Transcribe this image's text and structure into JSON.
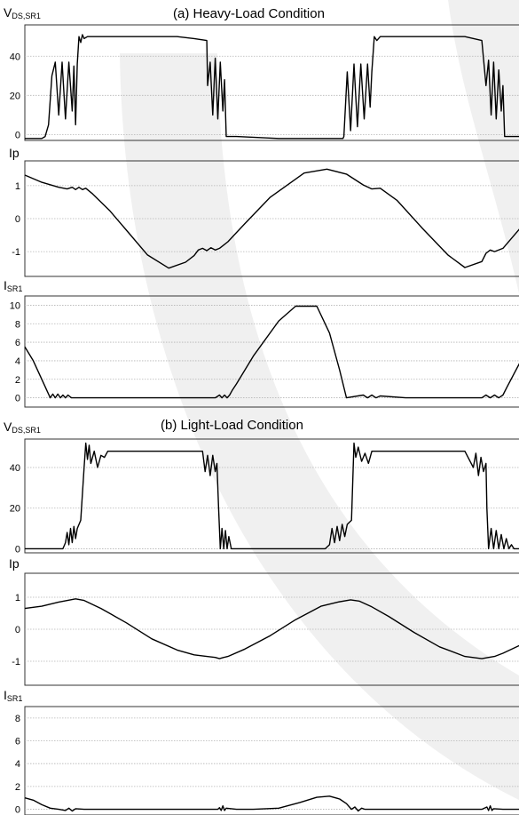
{
  "colors": {
    "trace": "#000000",
    "grid": "#b4b4b4",
    "frame": "#333333",
    "watermark": "#f0f0f0"
  },
  "sections": {
    "a_title": "(a) Heavy-Load Condition",
    "b_title": "(b) Light-Load Condition"
  },
  "chart_data": [
    {
      "type": "line",
      "name": "a-vds",
      "label_main": "V",
      "label_sub": "DS,SR1",
      "ylim": [
        -3,
        56
      ],
      "ytick_values": [
        0,
        20,
        40
      ],
      "yticks": [
        "0",
        "20",
        "40"
      ],
      "grid": true,
      "x": [
        0,
        20,
        24,
        28,
        32,
        36,
        40,
        44,
        48,
        52,
        56,
        58,
        60,
        62,
        64,
        66,
        68,
        70,
        74,
        80,
        100,
        140,
        180,
        200,
        215,
        216,
        219,
        222,
        225,
        228,
        231,
        234,
        236,
        238,
        250,
        300,
        340,
        376,
        377,
        381,
        385,
        389,
        393,
        397,
        401,
        405,
        408,
        410,
        413,
        416,
        420,
        440,
        480,
        520,
        540,
        545,
        548,
        551,
        554,
        557,
        560,
        563,
        565,
        567,
        575,
        585
      ],
      "y": [
        -2,
        -2,
        -1,
        5,
        30,
        37,
        10,
        37,
        8,
        37,
        12,
        35,
        5,
        36,
        50,
        47,
        51,
        49,
        50,
        50,
        50,
        50,
        50,
        49,
        48,
        25,
        37,
        10,
        39,
        8,
        37,
        12,
        28,
        -1,
        -1,
        -2,
        -2,
        -2,
        -1,
        32,
        2,
        36,
        4,
        36,
        8,
        36,
        14,
        32,
        50,
        48,
        50,
        50,
        50,
        50,
        48,
        25,
        38,
        10,
        37,
        8,
        33,
        12,
        25,
        -1,
        -1,
        -1
      ]
    },
    {
      "type": "line",
      "name": "a-ip",
      "label_main": "Ip",
      "label_sub": "",
      "ylim": [
        -1.75,
        1.75
      ],
      "ytick_values": [
        -1,
        0,
        1
      ],
      "yticks": [
        "-1",
        "0",
        "1"
      ],
      "grid": true,
      "x": [
        0,
        20,
        40,
        50,
        56,
        60,
        64,
        68,
        72,
        80,
        100,
        120,
        145,
        170,
        190,
        200,
        205,
        210,
        215,
        220,
        225,
        230,
        240,
        260,
        290,
        330,
        357,
        380,
        400,
        410,
        420,
        440,
        470,
        500,
        520,
        540,
        545,
        550,
        555,
        565,
        585
      ],
      "y": [
        1.32,
        1.1,
        0.95,
        0.9,
        0.95,
        0.88,
        0.95,
        0.88,
        0.92,
        0.75,
        0.25,
        -0.35,
        -1.1,
        -1.5,
        -1.32,
        -1.12,
        -0.95,
        -0.9,
        -0.97,
        -0.88,
        -0.95,
        -0.9,
        -0.7,
        -0.15,
        0.65,
        1.38,
        1.5,
        1.35,
        1.02,
        0.9,
        0.92,
        0.55,
        -0.3,
        -1.1,
        -1.48,
        -1.3,
        -1.05,
        -0.95,
        -1.0,
        -0.9,
        -0.3
      ]
    },
    {
      "type": "line",
      "name": "a-isr",
      "label_main": "I",
      "label_sub": "SR1",
      "ylim": [
        -1,
        11
      ],
      "ytick_values": [
        0,
        2,
        4,
        6,
        8,
        10
      ],
      "yticks": [
        "0",
        "2",
        "4",
        "6",
        "8",
        "10"
      ],
      "grid": true,
      "x": [
        0,
        10,
        20,
        30,
        33,
        36,
        39,
        42,
        45,
        48,
        51,
        55,
        80,
        120,
        160,
        200,
        225,
        230,
        233,
        236,
        239,
        242,
        245,
        250,
        270,
        300,
        320,
        345,
        360,
        372,
        380,
        400,
        405,
        410,
        415,
        420,
        450,
        500,
        540,
        545,
        550,
        555,
        560,
        565,
        570,
        585
      ],
      "y": [
        5.5,
        4.0,
        2.0,
        0.0,
        0.4,
        0.0,
        0.4,
        0.0,
        0.3,
        0.0,
        0.3,
        0.0,
        0.0,
        0.0,
        0.0,
        0.0,
        0.0,
        0.3,
        0.0,
        0.3,
        0.0,
        0.3,
        0.8,
        1.5,
        4.5,
        8.3,
        9.9,
        9.9,
        7.0,
        3.0,
        0.0,
        0.3,
        0.0,
        0.3,
        0.0,
        0.2,
        0.0,
        0.0,
        0.0,
        0.3,
        0.0,
        0.3,
        0.0,
        0.3,
        1.2,
        3.8
      ]
    },
    {
      "type": "line",
      "name": "b-vds",
      "label_main": "V",
      "label_sub": "DS,SR1",
      "ylim": [
        -2,
        54
      ],
      "ytick_values": [
        0,
        20,
        40
      ],
      "yticks": [
        "0",
        "20",
        "40"
      ],
      "grid": true,
      "x": [
        0,
        45,
        48,
        50,
        52,
        54,
        56,
        58,
        60,
        62,
        66,
        70,
        72,
        74,
        76,
        78,
        82,
        86,
        90,
        94,
        98,
        100,
        150,
        200,
        210,
        213,
        216,
        219,
        222,
        225,
        227,
        229,
        231,
        233,
        235,
        237,
        239,
        241,
        244,
        250,
        300,
        355,
        360,
        363,
        366,
        369,
        372,
        375,
        378,
        381,
        386,
        389,
        391,
        394,
        398,
        402,
        406,
        410,
        416,
        420,
        480,
        520,
        530,
        533,
        536,
        539,
        542,
        545,
        546,
        548,
        551,
        554,
        557,
        560,
        563,
        566,
        569,
        572,
        575,
        578,
        585
      ],
      "y": [
        0,
        0,
        3,
        8,
        2,
        10,
        3,
        11,
        5,
        10,
        14,
        40,
        52,
        44,
        51,
        42,
        48,
        40,
        46,
        45,
        48,
        48,
        48,
        48,
        48,
        38,
        46,
        36,
        46,
        38,
        42,
        20,
        0,
        10,
        0,
        9,
        0,
        6,
        0,
        0,
        0,
        0,
        2,
        10,
        3,
        11,
        4,
        12,
        6,
        12,
        14,
        52,
        45,
        50,
        43,
        47,
        42,
        48,
        48,
        48,
        48,
        48,
        40,
        47,
        36,
        45,
        38,
        42,
        20,
        0,
        10,
        0,
        9,
        0,
        7,
        0,
        5,
        0,
        2,
        0,
        0
      ]
    },
    {
      "type": "line",
      "name": "b-ip",
      "label_main": "Ip",
      "label_sub": "",
      "ylim": [
        -1.75,
        1.75
      ],
      "ytick_values": [
        -1,
        0,
        1
      ],
      "yticks": [
        "-1",
        "0",
        "1"
      ],
      "grid": true,
      "x": [
        0,
        20,
        40,
        60,
        70,
        90,
        120,
        150,
        180,
        200,
        215,
        225,
        230,
        235,
        240,
        260,
        290,
        320,
        350,
        370,
        385,
        395,
        410,
        430,
        460,
        490,
        520,
        540,
        548,
        555,
        565,
        585
      ],
      "y": [
        0.65,
        0.72,
        0.85,
        0.95,
        0.9,
        0.65,
        0.2,
        -0.3,
        -0.65,
        -0.8,
        -0.85,
        -0.88,
        -0.92,
        -0.88,
        -0.85,
        -0.62,
        -0.2,
        0.3,
        0.72,
        0.85,
        0.92,
        0.88,
        0.7,
        0.4,
        -0.1,
        -0.55,
        -0.85,
        -0.92,
        -0.88,
        -0.85,
        -0.75,
        -0.5
      ]
    },
    {
      "type": "line",
      "name": "b-isr",
      "label_main": "I",
      "label_sub": "SR1",
      "ylim": [
        -0.5,
        9
      ],
      "ytick_values": [
        0,
        2,
        4,
        6,
        8
      ],
      "yticks": [
        "0",
        "2",
        "4",
        "6",
        "8"
      ],
      "grid": true,
      "x": [
        0,
        10,
        20,
        30,
        40,
        48,
        52,
        56,
        60,
        70,
        100,
        150,
        200,
        228,
        230,
        232,
        234,
        236,
        238,
        250,
        270,
        300,
        325,
        345,
        360,
        372,
        380,
        386,
        390,
        394,
        398,
        402,
        420,
        460,
        500,
        540,
        546,
        548,
        550,
        552,
        554,
        565,
        575,
        585
      ],
      "y": [
        1.0,
        0.8,
        0.4,
        0.1,
        0.0,
        -0.1,
        0.1,
        -0.15,
        0.05,
        0.0,
        0.0,
        0.0,
        0.0,
        0.0,
        0.15,
        -0.1,
        0.3,
        -0.1,
        0.1,
        0.0,
        0.0,
        0.1,
        0.6,
        1.05,
        1.15,
        0.9,
        0.5,
        0.0,
        0.2,
        -0.15,
        0.1,
        0.0,
        0.0,
        0.0,
        0.0,
        0.0,
        0.2,
        -0.1,
        0.3,
        -0.1,
        0.05,
        0.0,
        0.0,
        0.0
      ]
    }
  ]
}
